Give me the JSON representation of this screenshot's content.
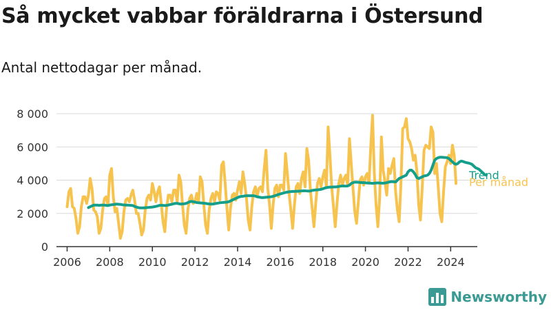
{
  "title": "Så mycket vabbar föräldrarna i Östersund",
  "subtitle": "Antal nettodagar per månad.",
  "brand": "Newsworthy",
  "chart_data": {
    "type": "line",
    "title": "Så mycket vabbar föräldrarna i Östersund",
    "subtitle": "Antal nettodagar per månad.",
    "xlabel": "",
    "ylabel": "",
    "xlim": [
      2005.5,
      2025.25
    ],
    "ylim": [
      0,
      8000
    ],
    "x_ticks": [
      2006,
      2008,
      2010,
      2012,
      2014,
      2016,
      2018,
      2020,
      2022,
      2024
    ],
    "x_tick_labels": [
      "2006",
      "2008",
      "2010",
      "2012",
      "2014",
      "2016",
      "2018",
      "2020",
      "2022",
      "2024"
    ],
    "y_ticks": [
      0,
      2000,
      4000,
      6000,
      8000
    ],
    "y_tick_labels": [
      "0",
      "2 000",
      "4 000",
      "6 000",
      "8 000"
    ],
    "grid": true,
    "series": [
      {
        "name": "Per månad",
        "color": "#f7c34f",
        "x_start": 2006.0,
        "step": 0.0833333,
        "values": [
          2400,
          3300,
          3500,
          2400,
          2300,
          1700,
          800,
          1200,
          2400,
          3000,
          3000,
          2600,
          3100,
          4100,
          3500,
          2200,
          2100,
          1800,
          800,
          1100,
          2200,
          2900,
          3000,
          2500,
          4300,
          4700,
          3000,
          2100,
          2300,
          1400,
          500,
          900,
          2100,
          2800,
          2900,
          2700,
          3100,
          3400,
          2800,
          2000,
          2000,
          1400,
          700,
          1000,
          2200,
          2900,
          3100,
          2800,
          3800,
          3300,
          2700,
          3300,
          3600,
          2600,
          1500,
          900,
          2300,
          3100,
          3100,
          2700,
          3400,
          3400,
          2700,
          4300,
          3900,
          2500,
          1300,
          800,
          2200,
          2900,
          3100,
          2600,
          2700,
          3200,
          2700,
          4200,
          3900,
          2500,
          1300,
          800,
          2200,
          2900,
          3200,
          2700,
          3300,
          3200,
          2800,
          4900,
          5100,
          3800,
          2300,
          1000,
          2300,
          3100,
          3200,
          2800,
          3400,
          3900,
          3200,
          4500,
          3800,
          2900,
          1600,
          1000,
          2400,
          3300,
          3600,
          3000,
          3500,
          3600,
          3300,
          4700,
          5800,
          3500,
          2500,
          1100,
          2500,
          3500,
          3700,
          3000,
          3700,
          3700,
          3400,
          5600,
          4400,
          3200,
          2200,
          1100,
          2500,
          3600,
          3800,
          3200,
          4100,
          4500,
          3600,
          5900,
          5200,
          3400,
          2300,
          1200,
          2600,
          3800,
          4100,
          3600,
          4200,
          4600,
          3600,
          7200,
          5500,
          3600,
          2400,
          1200,
          2600,
          3800,
          4300,
          3700,
          4100,
          4300,
          3700,
          6500,
          5000,
          3500,
          2100,
          1400,
          2700,
          4000,
          4200,
          3700,
          4200,
          4400,
          3800,
          6000,
          7900,
          4400,
          2500,
          1200,
          2900,
          6600,
          4600,
          3900,
          3100,
          4700,
          4400,
          4900,
          5300,
          3300,
          2200,
          1500,
          3800,
          7100,
          7200,
          7700,
          6500,
          6300,
          5900,
          5200,
          5500,
          4500,
          2500,
          1600,
          3600,
          5800,
          6100,
          6000,
          5900,
          7200,
          6900,
          4400,
          5000,
          3600,
          2000,
          1500,
          3300,
          4800,
          5100,
          5500,
          5000,
          6100,
          5500,
          3800
        ]
      },
      {
        "name": "Trend",
        "color": "#159f8b",
        "x_start": 2007.0,
        "step": 0.0833333,
        "values": [
          2350,
          2400,
          2450,
          2500,
          2500,
          2500,
          2480,
          2500,
          2500,
          2500,
          2480,
          2470,
          2500,
          2520,
          2530,
          2550,
          2560,
          2550,
          2540,
          2520,
          2510,
          2500,
          2500,
          2490,
          2480,
          2470,
          2420,
          2380,
          2350,
          2330,
          2330,
          2330,
          2340,
          2350,
          2360,
          2370,
          2380,
          2400,
          2420,
          2450,
          2480,
          2490,
          2480,
          2470,
          2480,
          2500,
          2530,
          2550,
          2580,
          2600,
          2600,
          2580,
          2560,
          2570,
          2580,
          2600,
          2650,
          2700,
          2720,
          2700,
          2680,
          2650,
          2640,
          2630,
          2620,
          2610,
          2600,
          2580,
          2570,
          2560,
          2560,
          2580,
          2600,
          2620,
          2640,
          2650,
          2660,
          2670,
          2680,
          2700,
          2750,
          2800,
          2850,
          2900,
          2950,
          3000,
          3020,
          3030,
          3050,
          3060,
          3060,
          3060,
          3060,
          3060,
          3040,
          3000,
          2980,
          2960,
          2950,
          2960,
          2970,
          2980,
          2990,
          3000,
          3030,
          3060,
          3100,
          3140,
          3170,
          3200,
          3230,
          3260,
          3280,
          3300,
          3310,
          3320,
          3320,
          3330,
          3330,
          3340,
          3350,
          3360,
          3360,
          3350,
          3340,
          3350,
          3380,
          3400,
          3410,
          3420,
          3430,
          3450,
          3480,
          3520,
          3550,
          3570,
          3580,
          3580,
          3590,
          3590,
          3600,
          3620,
          3640,
          3650,
          3650,
          3640,
          3650,
          3700,
          3800,
          3850,
          3880,
          3880,
          3870,
          3860,
          3850,
          3850,
          3840,
          3830,
          3830,
          3820,
          3810,
          3820,
          3830,
          3840,
          3830,
          3820,
          3820,
          3830,
          3850,
          3880,
          3900,
          3910,
          3900,
          3890,
          4000,
          4100,
          4150,
          4200,
          4250,
          4300,
          4500,
          4600,
          4600,
          4500,
          4350,
          4150,
          4100,
          4150,
          4200,
          4250,
          4270,
          4300,
          4400,
          4600,
          4900,
          5200,
          5300,
          5350,
          5380,
          5380,
          5370,
          5360,
          5350,
          5300,
          5200,
          5100,
          5000,
          4950,
          5000,
          5100,
          5150,
          5120,
          5080,
          5050,
          5030,
          5000,
          4950,
          4850,
          4750,
          4700,
          4650,
          4550,
          4450,
          4350,
          4300
        ]
      }
    ]
  },
  "legend": {
    "trend_label": "Trend",
    "monthly_label": "Per månad"
  }
}
